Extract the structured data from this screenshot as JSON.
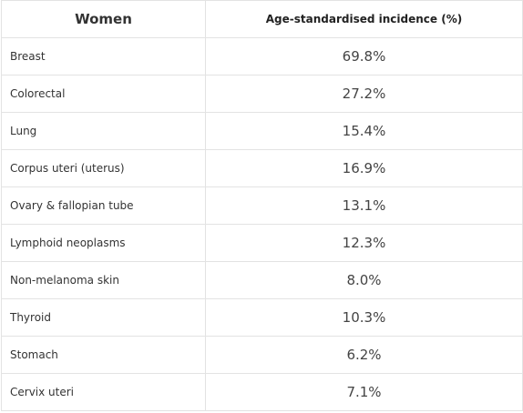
{
  "table": {
    "headers": {
      "group": "Women",
      "metric": "Age-standardised incidence (%)"
    },
    "rows": [
      {
        "cancer": "Breast",
        "value": "69.8%"
      },
      {
        "cancer": "Colorectal",
        "value": "27.2%"
      },
      {
        "cancer": "Lung",
        "value": "15.4%"
      },
      {
        "cancer": "Corpus uteri (uterus)",
        "value": "16.9%"
      },
      {
        "cancer": "Ovary & fallopian tube",
        "value": "13.1%"
      },
      {
        "cancer": "Lymphoid neoplasms",
        "value": "12.3%"
      },
      {
        "cancer": "Non-melanoma skin",
        "value": "8.0%"
      },
      {
        "cancer": "Thyroid",
        "value": "10.3%"
      },
      {
        "cancer": "Stomach",
        "value": "6.2%"
      },
      {
        "cancer": "Cervix uteri",
        "value": "7.1%"
      }
    ]
  }
}
